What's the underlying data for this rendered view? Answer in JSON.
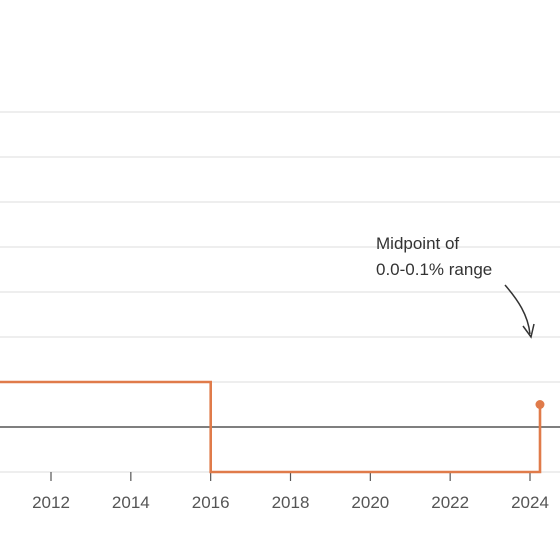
{
  "chart_data": {
    "type": "line",
    "step": true,
    "title": "",
    "xlabel": "",
    "ylabel": "",
    "x_ticks": [
      "2012",
      "2014",
      "2016",
      "2018",
      "2020",
      "2022",
      "2024"
    ],
    "x_tick_values": [
      2012,
      2014,
      2016,
      2018,
      2020,
      2022,
      2024
    ],
    "xlim": [
      2011,
      2024.5
    ],
    "ylim": [
      -0.1,
      0.9
    ],
    "gridlines_y": [
      0.7,
      0.6,
      0.5,
      0.4,
      0.3,
      0.2,
      0.1,
      -0.1
    ],
    "zero_line": 0,
    "grid": true,
    "series": [
      {
        "color": "#e07b4a",
        "x": [
          2011,
          2016,
          2016,
          2024.25,
          2024.25
        ],
        "y": [
          0.1,
          0.1,
          -0.1,
          -0.1,
          0.05
        ]
      }
    ],
    "marker": {
      "x": 2024.25,
      "y": 0.05,
      "color": "#e07b4a"
    },
    "annotation": {
      "lines": [
        "Midpoint of",
        "0.0-0.1% range"
      ]
    }
  }
}
